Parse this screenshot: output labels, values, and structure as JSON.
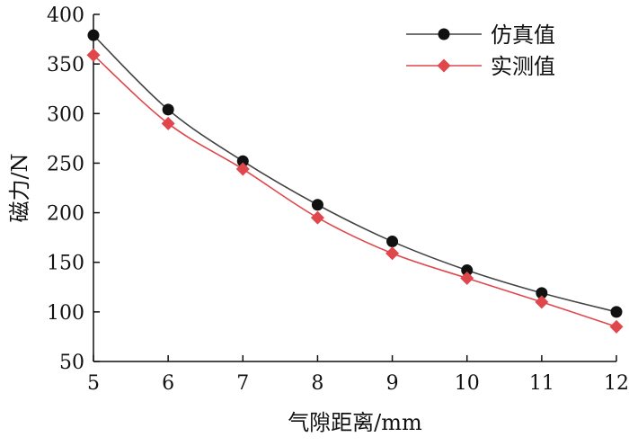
{
  "chart_data": {
    "type": "line",
    "xlabel": "气隙距离/mm",
    "ylabel": "磁力/N",
    "x": [
      5,
      6,
      7,
      8,
      9,
      10,
      11,
      12
    ],
    "xlim": [
      5,
      12
    ],
    "ylim": [
      50,
      400
    ],
    "xticks": [
      "5",
      "6",
      "7",
      "8",
      "9",
      "10",
      "11",
      "12"
    ],
    "yticks": [
      "50",
      "100",
      "150",
      "200",
      "250",
      "300",
      "350",
      "400"
    ],
    "grid": false,
    "legend_position": "top-right",
    "series": [
      {
        "name": "仿真值",
        "marker": "circle",
        "color": "#111111",
        "line_color": "#444444",
        "values": [
          379,
          304,
          252,
          208,
          171,
          142,
          119,
          100
        ]
      },
      {
        "name": "实测值",
        "marker": "diamond",
        "color": "#e0474c",
        "line_color": "#e0474c",
        "values": [
          359,
          290,
          244,
          195,
          159,
          134,
          110,
          85
        ]
      }
    ]
  }
}
